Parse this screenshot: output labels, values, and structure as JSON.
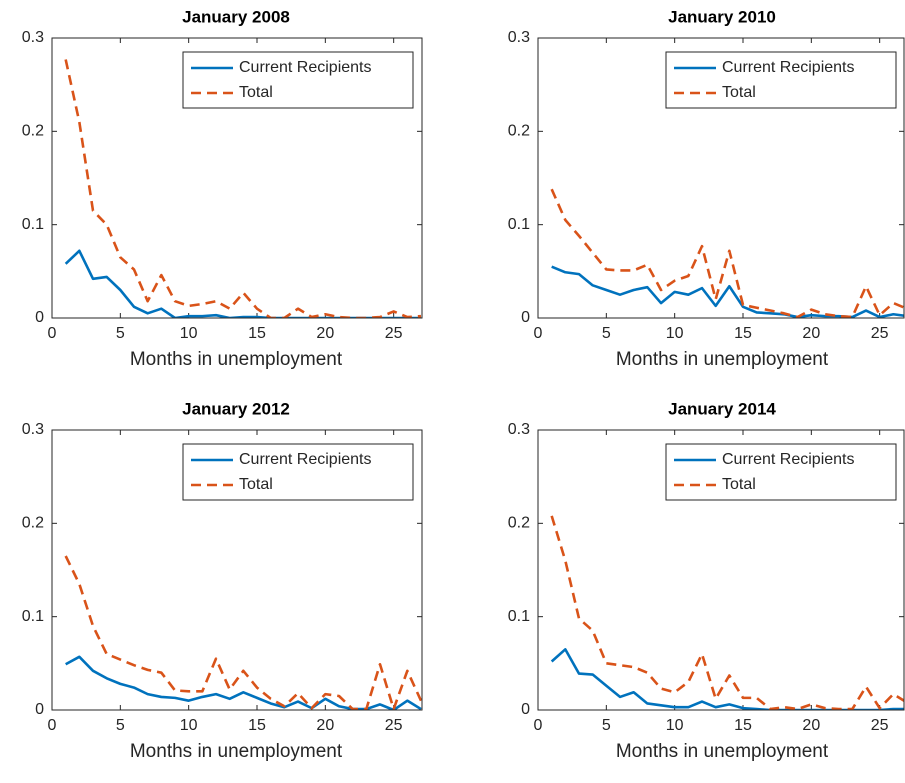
{
  "chart_data": [
    {
      "type": "line",
      "title": "January 2008",
      "xlabel": "Months in unemployment",
      "x": [
        1,
        2,
        3,
        4,
        5,
        6,
        7,
        8,
        9,
        10,
        11,
        12,
        13,
        14,
        15,
        16,
        17,
        18,
        19,
        20,
        21,
        22,
        23,
        24,
        25,
        26,
        27
      ],
      "series": [
        {
          "name": "Current Recipients",
          "color": "#0072BD",
          "style": "solid",
          "values": [
            0.058,
            0.072,
            0.042,
            0.044,
            0.03,
            0.012,
            0.005,
            0.01,
            0.0,
            0.002,
            0.002,
            0.003,
            0.0,
            0.001,
            0.001,
            0,
            0,
            0,
            0,
            0,
            0,
            0,
            0,
            0,
            0,
            0,
            0
          ]
        },
        {
          "name": "Total",
          "color": "#D95319",
          "style": "dashed",
          "values": [
            0.277,
            0.21,
            0.115,
            0.1,
            0.065,
            0.052,
            0.018,
            0.046,
            0.018,
            0.013,
            0.015,
            0.018,
            0.01,
            0.027,
            0.01,
            0,
            0,
            0.01,
            0.001,
            0.004,
            0.001,
            0,
            0,
            0.001,
            0.007,
            0.001,
            0.002
          ]
        }
      ],
      "xlim": [
        0,
        27
      ],
      "xticks": [
        0,
        5,
        10,
        15,
        20,
        25
      ],
      "ylim": [
        0,
        0.3
      ],
      "yticks": [
        0,
        0.1,
        0.2,
        0.3
      ],
      "legend": "top-right"
    },
    {
      "type": "line",
      "title": "January 2010",
      "xlabel": "Months in unemployment",
      "x": [
        1,
        2,
        3,
        4,
        5,
        6,
        7,
        8,
        9,
        10,
        11,
        12,
        13,
        14,
        15,
        16,
        17,
        18,
        19,
        20,
        21,
        22,
        23,
        24,
        25,
        26,
        27
      ],
      "series": [
        {
          "name": "Current Recipients",
          "color": "#0072BD",
          "style": "solid",
          "values": [
            0.055,
            0.049,
            0.047,
            0.035,
            0.03,
            0.025,
            0.03,
            0.033,
            0.016,
            0.028,
            0.025,
            0.032,
            0.013,
            0.034,
            0.012,
            0.006,
            0.005,
            0.004,
            0.001,
            0.003,
            0.002,
            0.002,
            0.001,
            0.008,
            0.001,
            0.004,
            0.002
          ]
        },
        {
          "name": "Total",
          "color": "#D95319",
          "style": "dashed",
          "values": [
            0.138,
            0.105,
            0.088,
            0.07,
            0.052,
            0.051,
            0.051,
            0.057,
            0.03,
            0.04,
            0.045,
            0.077,
            0.02,
            0.072,
            0.014,
            0.011,
            0.008,
            0.005,
            0.001,
            0.009,
            0.004,
            0.002,
            0.001,
            0.034,
            0.003,
            0.016,
            0.01
          ]
        }
      ],
      "xlim": [
        0,
        27
      ],
      "xticks": [
        0,
        5,
        10,
        15,
        20,
        25
      ],
      "ylim": [
        0,
        0.3
      ],
      "yticks": [
        0,
        0.1,
        0.2,
        0.3
      ],
      "legend": "top-right"
    },
    {
      "type": "line",
      "title": "January 2012",
      "xlabel": "Months in unemployment",
      "x": [
        1,
        2,
        3,
        4,
        5,
        6,
        7,
        8,
        9,
        10,
        11,
        12,
        13,
        14,
        15,
        16,
        17,
        18,
        19,
        20,
        21,
        22,
        23,
        24,
        25,
        26,
        27
      ],
      "series": [
        {
          "name": "Current Recipients",
          "color": "#0072BD",
          "style": "solid",
          "values": [
            0.049,
            0.057,
            0.042,
            0.034,
            0.028,
            0.024,
            0.017,
            0.014,
            0.013,
            0.01,
            0.014,
            0.017,
            0.012,
            0.019,
            0.013,
            0.007,
            0.003,
            0.009,
            0.002,
            0.012,
            0.004,
            0.001,
            0.001,
            0.006,
            0.0,
            0.01,
            0.001
          ]
        },
        {
          "name": "Total",
          "color": "#D95319",
          "style": "dashed",
          "values": [
            0.165,
            0.135,
            0.09,
            0.06,
            0.054,
            0.048,
            0.043,
            0.04,
            0.021,
            0.02,
            0.02,
            0.055,
            0.022,
            0.042,
            0.024,
            0.012,
            0.004,
            0.018,
            0.002,
            0.017,
            0.015,
            0.001,
            0.001,
            0.049,
            0.001,
            0.042,
            0.01
          ]
        }
      ],
      "xlim": [
        0,
        27
      ],
      "xticks": [
        0,
        5,
        10,
        15,
        20,
        25
      ],
      "ylim": [
        0,
        0.3
      ],
      "yticks": [
        0,
        0.1,
        0.2,
        0.3
      ],
      "legend": "top-right"
    },
    {
      "type": "line",
      "title": "January 2014",
      "xlabel": "Months in unemployment",
      "x": [
        1,
        2,
        3,
        4,
        5,
        6,
        7,
        8,
        9,
        10,
        11,
        12,
        13,
        14,
        15,
        16,
        17,
        18,
        19,
        20,
        21,
        22,
        23,
        24,
        25,
        26,
        27
      ],
      "series": [
        {
          "name": "Current Recipients",
          "color": "#0072BD",
          "style": "solid",
          "values": [
            0.052,
            0.065,
            0.039,
            0.038,
            0.026,
            0.014,
            0.019,
            0.007,
            0.005,
            0.003,
            0.003,
            0.009,
            0.003,
            0.006,
            0.002,
            0.001,
            0,
            0,
            0,
            0,
            0,
            0,
            0,
            0,
            0,
            0.001,
            0.001
          ]
        },
        {
          "name": "Total",
          "color": "#D95319",
          "style": "dashed",
          "values": [
            0.208,
            0.16,
            0.098,
            0.085,
            0.05,
            0.048,
            0.046,
            0.04,
            0.023,
            0.019,
            0.03,
            0.06,
            0.012,
            0.037,
            0.013,
            0.013,
            0.001,
            0.003,
            0.001,
            0.006,
            0.002,
            0.001,
            0.001,
            0.025,
            0.002,
            0.017,
            0.008
          ]
        }
      ],
      "xlim": [
        0,
        27
      ],
      "xticks": [
        0,
        5,
        10,
        15,
        20,
        25
      ],
      "ylim": [
        0,
        0.3
      ],
      "yticks": [
        0,
        0.1,
        0.2,
        0.3
      ],
      "legend": "top-right"
    }
  ]
}
